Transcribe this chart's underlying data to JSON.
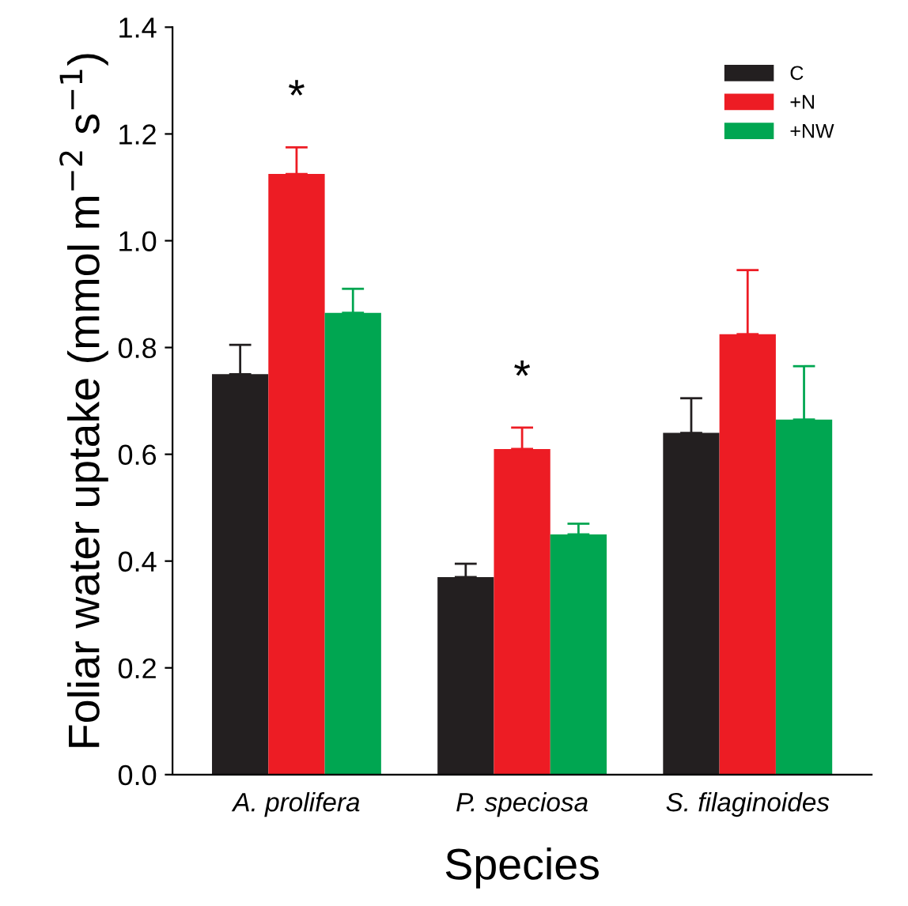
{
  "chart_data": {
    "type": "bar",
    "xlabel": "Species",
    "ylabel": "Foliar water uptake (mmol m$^{−2}$ s$^{−1}$)",
    "categories": [
      "A. prolifera",
      "P. speciosa",
      "S. filaginoides"
    ],
    "series": [
      {
        "name": "C",
        "color": "#231f20",
        "values": [
          0.75,
          0.37,
          0.64
        ],
        "errors": [
          [
            0.75,
            0.805
          ],
          [
            0.37,
            0.395
          ],
          [
            0.64,
            0.705
          ]
        ]
      },
      {
        "name": "+N",
        "color": "#ed1c24",
        "values": [
          1.125,
          0.61,
          0.825
        ],
        "errors": [
          [
            1.125,
            1.175
          ],
          [
            0.61,
            0.65
          ],
          [
            0.825,
            0.945
          ]
        ]
      },
      {
        "name": "+NW",
        "color": "#00a651",
        "values": [
          0.865,
          0.45,
          0.665
        ],
        "errors": [
          [
            0.865,
            0.91
          ],
          [
            0.45,
            0.47
          ],
          [
            0.665,
            0.765
          ]
        ]
      }
    ],
    "annotations": [
      "*",
      "*"
    ],
    "ylim": [
      0,
      1.4
    ],
    "yticks": [
      {
        "value": 0,
        "label": "0.0"
      },
      {
        "value": 0.2,
        "label": "0.2"
      },
      {
        "value": 0.4,
        "label": "0.4"
      },
      {
        "value": 0.6,
        "label": "0.6"
      },
      {
        "value": 0.8,
        "label": "0.8"
      },
      {
        "value": 1,
        "label": "1.0"
      },
      {
        "value": 1.2,
        "label": "1.2"
      },
      {
        "value": 1.4,
        "label": "1.4"
      }
    ],
    "legend": "top right",
    "grid": false
  }
}
